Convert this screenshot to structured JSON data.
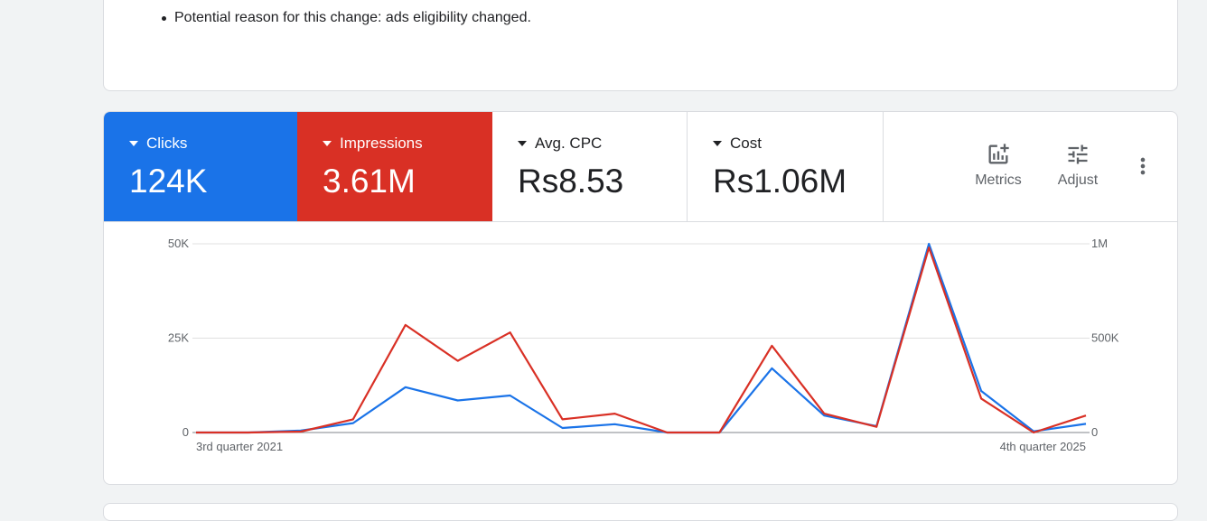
{
  "insight": {
    "bullet": "Potential reason for this change: ads eligibility changed."
  },
  "scorecards": [
    {
      "label": "Clicks",
      "value": "124K",
      "color": "#1a73e8"
    },
    {
      "label": "Impressions",
      "value": "3.61M",
      "color": "#d93025"
    },
    {
      "label": "Avg. CPC",
      "value": "Rs8.53"
    },
    {
      "label": "Cost",
      "value": "Rs1.06M"
    }
  ],
  "toolbar": {
    "metrics_label": "Metrics",
    "metrics_icon": "add-chart-icon",
    "adjust_label": "Adjust",
    "adjust_icon": "tune-icon",
    "more_icon": "more-vert-icon"
  },
  "chart_data": {
    "type": "line",
    "categories": [
      "3rd quarter 2021",
      "",
      "",
      "",
      "",
      "",
      "",
      "",
      "",
      "",
      "",
      "",
      "",
      "",
      "",
      "",
      "",
      "4th quarter 2025"
    ],
    "x_tick_labels": [
      "3rd quarter 2021",
      "4th quarter 2025"
    ],
    "y_left": {
      "ticks": [
        "0",
        "25K",
        "50K"
      ],
      "range": [
        0,
        50000
      ]
    },
    "y_right": {
      "ticks": [
        "0",
        "500K",
        "1M"
      ],
      "range": [
        0,
        1000000
      ]
    },
    "grid": true,
    "series": [
      {
        "name": "Clicks",
        "color": "#1a73e8",
        "axis": "left",
        "values": [
          0,
          0,
          500,
          2500,
          12000,
          8500,
          9800,
          1200,
          2200,
          0,
          0,
          17000,
          4500,
          1700,
          50000,
          11000,
          300,
          2300
        ]
      },
      {
        "name": "Impressions",
        "color": "#d93025",
        "axis": "right",
        "values": [
          0,
          0,
          5000,
          70000,
          570000,
          380000,
          530000,
          70000,
          100000,
          0,
          0,
          460000,
          100000,
          30000,
          980000,
          180000,
          0,
          90000
        ]
      }
    ]
  }
}
